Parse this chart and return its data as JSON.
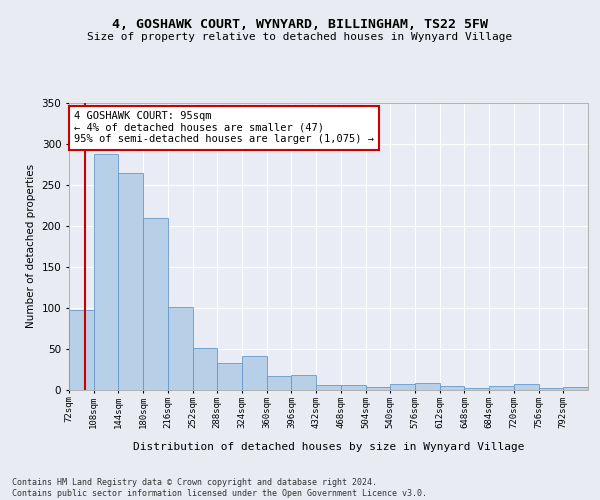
{
  "title": "4, GOSHAWK COURT, WYNYARD, BILLINGHAM, TS22 5FW",
  "subtitle": "Size of property relative to detached houses in Wynyard Village",
  "xlabel": "Distribution of detached houses by size in Wynyard Village",
  "ylabel": "Number of detached properties",
  "bar_color": "#b8cfe8",
  "bar_edge_color": "#6699cc",
  "background_color": "#e8ecf2",
  "plot_bg_color": "#eaecf5",
  "annotation_text": "4 GOSHAWK COURT: 95sqm\n← 4% of detached houses are smaller (47)\n95% of semi-detached houses are larger (1,075) →",
  "annotation_box_color": "#ffffff",
  "annotation_box_edge": "#cc0000",
  "vline_color": "#cc0000",
  "property_x": 95,
  "bins_start": 72,
  "bin_width": 36,
  "num_bins": 21,
  "bar_heights": [
    97,
    287,
    264,
    210,
    101,
    51,
    33,
    41,
    17,
    18,
    6,
    6,
    4,
    7,
    9,
    5,
    2,
    5,
    7,
    2,
    4
  ],
  "xlim_left": 72,
  "xlim_right": 828,
  "ylim_top": 350,
  "tick_labels": [
    "72sqm",
    "108sqm",
    "144sqm",
    "180sqm",
    "216sqm",
    "252sqm",
    "288sqm",
    "324sqm",
    "360sqm",
    "396sqm",
    "432sqm",
    "468sqm",
    "504sqm",
    "540sqm",
    "576sqm",
    "612sqm",
    "648sqm",
    "684sqm",
    "720sqm",
    "756sqm",
    "792sqm"
  ],
  "footer": "Contains HM Land Registry data © Crown copyright and database right 2024.\nContains public sector information licensed under the Open Government Licence v3.0.",
  "grid_color": "#ffffff",
  "yticks": [
    0,
    50,
    100,
    150,
    200,
    250,
    300,
    350
  ],
  "title_fontsize": 9.5,
  "subtitle_fontsize": 8,
  "ylabel_fontsize": 7.5,
  "xlabel_fontsize": 8,
  "tick_fontsize": 6.5,
  "ytick_fontsize": 7.5,
  "footer_fontsize": 6,
  "annot_fontsize": 7.5
}
